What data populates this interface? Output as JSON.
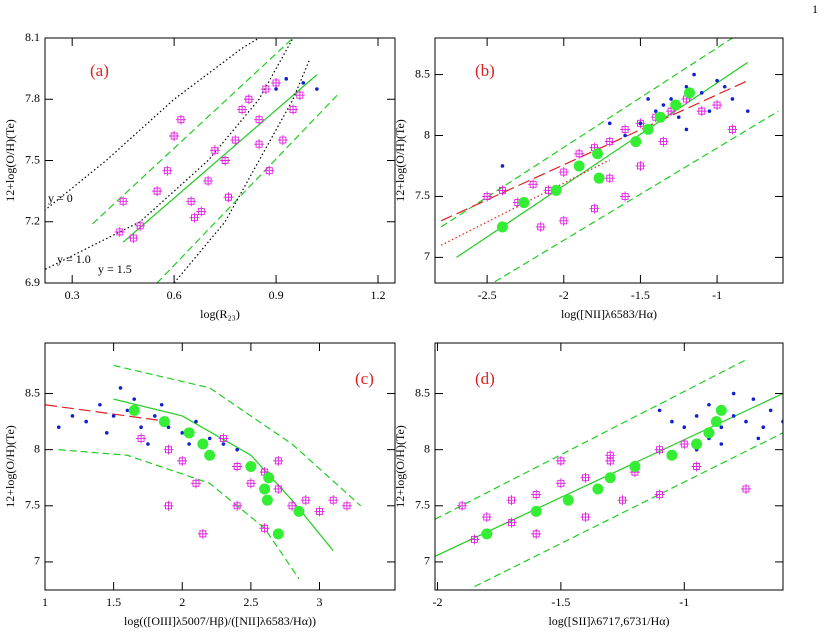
{
  "page_number": "1",
  "chart_data": [
    {
      "type": "scatter",
      "panel_label": "(a)",
      "xlabel": "log(R₂₃)",
      "ylabel": "12+log(O/H)(Te)",
      "xlim": [
        0.22,
        1.25
      ],
      "ylim": [
        6.9,
        8.1
      ],
      "xticks": [
        0.3,
        0.6,
        0.9,
        1.2
      ],
      "yticks": [
        6.9,
        7.2,
        7.5,
        7.8,
        8.1
      ],
      "annotations": [
        "y = 0",
        "y = 1.0",
        "y = 1.5"
      ],
      "series": [
        {
          "color": "#e020e0",
          "marker": "square",
          "x": [
            0.45,
            0.44,
            0.48,
            0.5,
            0.55,
            0.58,
            0.6,
            0.62,
            0.65,
            0.68,
            0.7,
            0.72,
            0.75,
            0.78,
            0.8,
            0.82,
            0.85,
            0.87,
            0.9,
            0.92,
            0.88,
            0.95,
            0.97,
            0.85,
            0.76,
            0.66
          ],
          "y": [
            7.3,
            7.15,
            7.12,
            7.18,
            7.35,
            7.45,
            7.62,
            7.7,
            7.3,
            7.25,
            7.4,
            7.55,
            7.5,
            7.6,
            7.75,
            7.8,
            7.7,
            7.85,
            7.88,
            7.6,
            7.45,
            7.75,
            7.82,
            7.58,
            7.32,
            7.22
          ]
        },
        {
          "color": "#1020d0",
          "marker": "dot",
          "x": [
            0.9,
            0.93,
            1.02,
            0.98
          ],
          "y": [
            7.85,
            7.9,
            7.85,
            7.88
          ]
        }
      ],
      "lines": [
        {
          "color": "#22cc22",
          "style": "solid",
          "x": [
            0.45,
            1.02
          ],
          "y": [
            7.1,
            7.92
          ]
        },
        {
          "color": "#22cc22",
          "style": "dashed",
          "x": [
            0.36,
            0.95
          ],
          "y": [
            7.19,
            8.1
          ]
        },
        {
          "color": "#22cc22",
          "style": "dashed",
          "x": [
            0.55,
            1.08
          ],
          "y": [
            6.9,
            7.82
          ]
        },
        {
          "color": "#000000",
          "style": "dotted",
          "x": [
            0.2,
            0.4,
            0.6,
            0.8,
            0.85
          ],
          "y": [
            7.23,
            7.5,
            7.8,
            8.05,
            8.1
          ]
        },
        {
          "color": "#000000",
          "style": "dotted",
          "x": [
            0.2,
            0.5,
            0.7,
            0.85,
            0.95
          ],
          "y": [
            6.95,
            7.2,
            7.5,
            7.8,
            8.1
          ]
        },
        {
          "color": "#000000",
          "style": "dotted",
          "x": [
            0.6,
            0.75,
            0.85,
            0.95,
            1.0
          ],
          "y": [
            6.9,
            7.2,
            7.5,
            7.8,
            8.0
          ]
        }
      ]
    },
    {
      "type": "scatter",
      "panel_label": "(b)",
      "xlabel": "log([NII]λ6583/Hα)",
      "ylabel": "12+log(O/H)(Te)",
      "xlim": [
        -2.84,
        -0.57
      ],
      "ylim": [
        6.79,
        8.8
      ],
      "xticks": [
        -2.5,
        -2,
        -1.5,
        -1
      ],
      "yticks": [
        7,
        7.5,
        8,
        8.5
      ],
      "series": [
        {
          "color": "#e020e0",
          "marker": "square",
          "x": [
            -2.5,
            -2.3,
            -2.2,
            -2.1,
            -2.0,
            -1.9,
            -1.8,
            -1.7,
            -1.6,
            -1.5,
            -1.4,
            -1.3,
            -1.2,
            -1.1,
            -1.0,
            -2.0,
            -1.8,
            -1.6,
            -1.5,
            -2.4,
            -1.7,
            -2.15,
            -1.35,
            -0.9
          ],
          "y": [
            7.5,
            7.45,
            7.6,
            7.55,
            7.7,
            7.85,
            7.9,
            7.95,
            8.05,
            8.1,
            8.15,
            8.2,
            8.3,
            8.2,
            8.25,
            7.3,
            7.4,
            7.5,
            7.75,
            7.55,
            7.65,
            7.25,
            7.95,
            8.05
          ]
        },
        {
          "color": "#1020d0",
          "marker": "dot",
          "x": [
            -1.6,
            -1.5,
            -1.4,
            -1.3,
            -1.2,
            -1.1,
            -1.0,
            -0.9,
            -1.35,
            -1.25,
            -1.15,
            -1.05,
            -0.95,
            -1.45,
            -0.8,
            -2.4,
            -1.7,
            -1.2
          ],
          "y": [
            8.0,
            8.1,
            8.2,
            8.3,
            8.4,
            8.35,
            8.45,
            8.3,
            8.25,
            8.15,
            8.5,
            8.2,
            8.4,
            8.3,
            8.2,
            7.75,
            8.1,
            8.05
          ]
        },
        {
          "color": "#33ee33",
          "marker": "circle",
          "x": [
            -2.4,
            -2.26,
            -2.05,
            -1.9,
            -1.78,
            -1.77,
            -1.53,
            -1.45,
            -1.37,
            -1.27,
            -1.18
          ],
          "y": [
            7.25,
            7.45,
            7.55,
            7.75,
            7.85,
            7.65,
            7.95,
            8.05,
            8.15,
            8.25,
            8.35
          ]
        }
      ],
      "lines": [
        {
          "color": "#22cc22",
          "style": "solid",
          "x": [
            -2.7,
            -0.8
          ],
          "y": [
            7.0,
            8.6
          ]
        },
        {
          "color": "#22cc22",
          "style": "dashed",
          "x": [
            -2.8,
            -0.9
          ],
          "y": [
            7.25,
            8.8
          ]
        },
        {
          "color": "#22cc22",
          "style": "dashed",
          "x": [
            -2.45,
            -0.6
          ],
          "y": [
            6.8,
            8.2
          ]
        },
        {
          "color": "#e02020",
          "style": "longdash",
          "x": [
            -2.8,
            -0.8
          ],
          "y": [
            7.3,
            8.45
          ]
        },
        {
          "color": "#e02020",
          "style": "dotted",
          "x": [
            -2.8,
            -1.7
          ],
          "y": [
            7.1,
            7.8
          ]
        }
      ]
    },
    {
      "type": "scatter",
      "panel_label": "(c)",
      "xlabel": "log(([OIII]λ5007/Hβ)/([NII]λ6583/Hα))",
      "ylabel": "12+log(O/H)(Te)",
      "xlim": [
        1,
        3.55
      ],
      "ylim": [
        6.75,
        8.95
      ],
      "xticks": [
        1,
        1.5,
        2,
        2.5,
        3
      ],
      "yticks": [
        7,
        7.5,
        8,
        8.5
      ],
      "series": [
        {
          "color": "#1020d0",
          "marker": "dot",
          "x": [
            1.2,
            1.3,
            1.4,
            1.5,
            1.6,
            1.7,
            1.8,
            1.9,
            2.0,
            2.1,
            2.2,
            2.3,
            1.45,
            1.65,
            1.85,
            2.05,
            1.1,
            1.55,
            2.4,
            1.75
          ],
          "y": [
            8.3,
            8.25,
            8.4,
            8.3,
            8.35,
            8.2,
            8.3,
            8.2,
            8.15,
            8.25,
            8.1,
            8.05,
            8.15,
            8.45,
            8.4,
            8.05,
            8.2,
            8.55,
            8.0,
            8.05
          ]
        },
        {
          "color": "#e020e0",
          "marker": "square",
          "x": [
            1.7,
            1.9,
            2.0,
            2.2,
            2.4,
            2.5,
            2.6,
            2.7,
            2.8,
            2.9,
            3.0,
            3.2,
            1.9,
            2.1,
            2.4,
            2.15,
            2.6,
            3.1,
            2.3,
            2.7
          ],
          "y": [
            8.1,
            8.0,
            7.9,
            7.95,
            7.85,
            7.7,
            7.8,
            7.65,
            7.5,
            7.55,
            7.45,
            7.5,
            7.5,
            7.7,
            7.5,
            7.25,
            7.3,
            7.55,
            8.1,
            7.9
          ]
        },
        {
          "color": "#33ee33",
          "marker": "circle",
          "x": [
            1.65,
            1.87,
            2.05,
            2.15,
            2.2,
            2.5,
            2.63,
            2.6,
            2.62,
            2.85,
            2.7
          ],
          "y": [
            8.35,
            8.25,
            8.15,
            8.05,
            7.95,
            7.85,
            7.75,
            7.65,
            7.55,
            7.45,
            7.25
          ]
        }
      ],
      "lines": [
        {
          "color": "#22cc22",
          "style": "solid",
          "x": [
            1.5,
            2,
            2.5,
            2.8,
            3.1
          ],
          "y": [
            8.45,
            8.3,
            7.95,
            7.55,
            7.1
          ]
        },
        {
          "color": "#22cc22",
          "style": "dashed",
          "x": [
            1.5,
            2.2,
            2.8,
            3.3
          ],
          "y": [
            8.75,
            8.55,
            8.05,
            7.5
          ]
        },
        {
          "color": "#22cc22",
          "style": "dashed",
          "x": [
            1.1,
            1.6,
            2.2,
            2.6,
            2.85
          ],
          "y": [
            8.0,
            7.95,
            7.7,
            7.3,
            6.85
          ]
        },
        {
          "color": "#e02020",
          "style": "longdash",
          "x": [
            1,
            1.9
          ],
          "y": [
            8.4,
            8.25
          ]
        }
      ]
    },
    {
      "type": "scatter",
      "panel_label": "(d)",
      "xlabel": "log([SII]λ6717,6731/Hα)",
      "ylabel": "12+log(O/H)(Te)",
      "xlim": [
        -2.01,
        -0.6
      ],
      "ylim": [
        6.75,
        8.95
      ],
      "xticks": [
        -2,
        -1.5,
        -1
      ],
      "yticks": [
        7,
        7.5,
        8,
        8.5
      ],
      "series": [
        {
          "color": "#1020d0",
          "marker": "dot",
          "x": [
            -1.0,
            -0.95,
            -0.9,
            -0.85,
            -0.8,
            -0.75,
            -0.7,
            -0.65,
            -0.9,
            -1.05,
            -0.8,
            -0.72,
            -0.85,
            -0.68,
            -0.95,
            -1.1,
            -0.6
          ],
          "y": [
            8.2,
            8.3,
            8.4,
            8.2,
            8.3,
            8.25,
            8.1,
            8.35,
            8.1,
            8.25,
            8.5,
            8.45,
            8.05,
            8.2,
            8.0,
            8.35,
            8.25
          ]
        },
        {
          "color": "#e020e0",
          "marker": "square",
          "x": [
            -1.9,
            -1.8,
            -1.7,
            -1.6,
            -1.5,
            -1.4,
            -1.3,
            -1.2,
            -1.1,
            -1.0,
            -1.85,
            -1.6,
            -1.4,
            -1.25,
            -1.1,
            -0.95,
            -1.5,
            -1.3,
            -1.7,
            -0.75
          ],
          "y": [
            7.5,
            7.4,
            7.55,
            7.6,
            7.7,
            7.75,
            7.9,
            7.8,
            8.0,
            8.05,
            7.2,
            7.25,
            7.4,
            7.55,
            7.6,
            7.85,
            7.9,
            7.95,
            7.35,
            7.65
          ]
        },
        {
          "color": "#33ee33",
          "marker": "circle",
          "x": [
            -1.8,
            -1.6,
            -1.47,
            -1.35,
            -1.3,
            -1.2,
            -1.05,
            -0.95,
            -0.9,
            -0.87,
            -0.85
          ],
          "y": [
            7.25,
            7.45,
            7.55,
            7.65,
            7.75,
            7.85,
            7.95,
            8.05,
            8.15,
            8.25,
            8.35
          ]
        }
      ],
      "lines": [
        {
          "color": "#22cc22",
          "style": "solid",
          "x": [
            -2.01,
            -0.6
          ],
          "y": [
            7.05,
            8.5
          ]
        },
        {
          "color": "#22cc22",
          "style": "dashed",
          "x": [
            -2.01,
            -0.75
          ],
          "y": [
            7.38,
            8.8
          ]
        },
        {
          "color": "#22cc22",
          "style": "dashed",
          "x": [
            -1.85,
            -0.6
          ],
          "y": [
            6.78,
            8.15
          ]
        }
      ]
    }
  ]
}
